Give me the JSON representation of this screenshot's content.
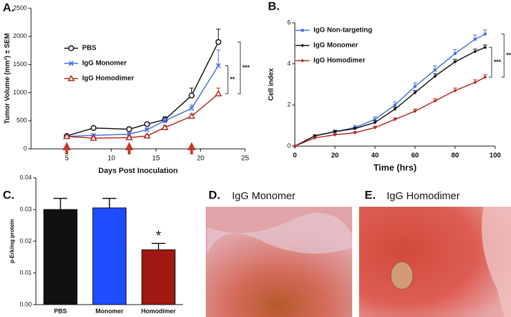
{
  "chart_data": [
    {
      "type": "line",
      "panel": "A.",
      "ylabel": "Tumor Volume (mm³) ± SEM",
      "xlabel": "Days  Post  Inoculation",
      "x": [
        5,
        8,
        12,
        14,
        16,
        19,
        22
      ],
      "xlim": [
        1,
        25
      ],
      "xticks": [
        5,
        10,
        15,
        20,
        25
      ],
      "ylim": [
        0,
        2500
      ],
      "yticks": [
        0,
        500,
        1000,
        1500,
        2000,
        2500
      ],
      "series": [
        {
          "name": "PBS",
          "color": "#111111",
          "marker": "circle",
          "values": [
            230,
            370,
            350,
            440,
            520,
            950,
            1900
          ],
          "errors": [
            20,
            30,
            40,
            30,
            50,
            130,
            230
          ]
        },
        {
          "name": "IgG Monomer",
          "color": "#4a6fe0",
          "marker": "x",
          "values": [
            220,
            240,
            260,
            340,
            500,
            720,
            1480
          ],
          "errors": [
            20,
            25,
            30,
            30,
            40,
            60,
            280
          ]
        },
        {
          "name": "IgG Homodimer",
          "color": "#b22a22",
          "marker": "triangle",
          "values": [
            220,
            190,
            200,
            230,
            380,
            580,
            980
          ],
          "errors": [
            20,
            20,
            25,
            25,
            30,
            40,
            100
          ]
        }
      ],
      "treatment_days": [
        5,
        12,
        19
      ],
      "significance": [
        "**",
        "***"
      ],
      "legend": "upper-left"
    },
    {
      "type": "line",
      "panel": "B.",
      "ylabel": "Cell index",
      "xlabel": "Time (hrs)",
      "x": [
        0,
        10,
        20,
        30,
        40,
        50,
        60,
        70,
        80,
        90,
        95
      ],
      "xlim": [
        0,
        100
      ],
      "xticks": [
        0,
        20,
        40,
        60,
        80,
        100
      ],
      "ylim": [
        0,
        6
      ],
      "yticks": [
        0,
        2,
        4,
        6
      ],
      "series": [
        {
          "name": "IgG Non-targeting",
          "color": "#4a6fe0",
          "marker": "square",
          "values": [
            0,
            0.5,
            0.7,
            0.9,
            1.3,
            2.0,
            2.9,
            3.7,
            4.5,
            5.2,
            5.45
          ],
          "errors": [
            0,
            0.05,
            0.08,
            0.1,
            0.12,
            0.15,
            0.18,
            0.2,
            0.2,
            0.2,
            0.2
          ]
        },
        {
          "name": "IgG Monomer",
          "color": "#111111",
          "marker": "diamond",
          "values": [
            0,
            0.5,
            0.7,
            0.85,
            1.15,
            1.8,
            2.6,
            3.4,
            4.1,
            4.6,
            4.8
          ],
          "errors": [
            0,
            0.04,
            0.05,
            0.06,
            0.08,
            0.1,
            0.1,
            0.12,
            0.12,
            0.12,
            0.12
          ]
        },
        {
          "name": "IgG Homodimer",
          "color": "#b22a22",
          "marker": "diamond",
          "values": [
            0,
            0.4,
            0.55,
            0.65,
            0.9,
            1.3,
            1.7,
            2.2,
            2.7,
            3.1,
            3.35
          ],
          "errors": [
            0,
            0.04,
            0.05,
            0.06,
            0.07,
            0.08,
            0.1,
            0.1,
            0.12,
            0.12,
            0.12
          ]
        }
      ],
      "significance": [
        "***",
        "***"
      ],
      "legend": "upper-left"
    },
    {
      "type": "bar",
      "panel": "C.",
      "ylabel": "p-Erk/mg protein",
      "categories": [
        "PBS",
        "Monomer",
        "Homodimer"
      ],
      "values": [
        0.03,
        0.0305,
        0.0173
      ],
      "errors": [
        0.0035,
        0.003,
        0.002
      ],
      "colors": [
        "#111111",
        "#1f4cff",
        "#a01812"
      ],
      "ylim": [
        0,
        0.04
      ],
      "yticks": [
        {
          "value": 0,
          "label": "0.00"
        },
        {
          "value": 0.01,
          "label": "0.01"
        },
        {
          "value": 0.02,
          "label": "0.02"
        },
        {
          "value": 0.03,
          "label": "0.03"
        },
        {
          "value": 0.04,
          "label": "0.04"
        }
      ],
      "significance": [
        "*"
      ]
    }
  ],
  "images": [
    {
      "panel": "D.",
      "title": "IgG Monomer"
    },
    {
      "panel": "E.",
      "title": "IgG Homodimer"
    }
  ]
}
